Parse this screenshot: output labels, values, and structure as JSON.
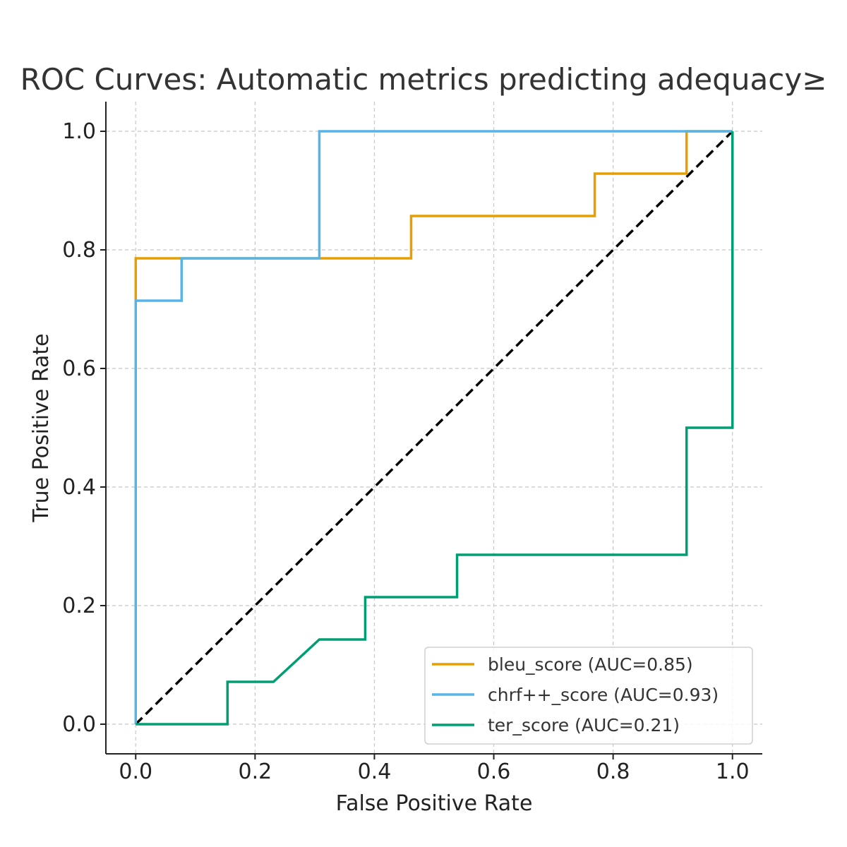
{
  "chart_data": {
    "type": "line",
    "title": "ROC Curves: Automatic metrics predicting adequacy≥",
    "xlabel": "False Positive Rate",
    "ylabel": "True Positive Rate",
    "xlim": [
      -0.05,
      1.05
    ],
    "ylim": [
      -0.05,
      1.05
    ],
    "xticks": [
      0.0,
      0.2,
      0.4,
      0.6,
      0.8,
      1.0
    ],
    "yticks": [
      0.0,
      0.2,
      0.4,
      0.6,
      0.8,
      1.0
    ],
    "xtick_labels": [
      "0.0",
      "0.2",
      "0.4",
      "0.6",
      "0.8",
      "1.0"
    ],
    "ytick_labels": [
      "0.0",
      "0.2",
      "0.4",
      "0.6",
      "0.8",
      "1.0"
    ],
    "grid": true,
    "legend_position": "lower-right",
    "series": [
      {
        "name": "bleu_score (AUC=0.85)",
        "color": "#E69F00",
        "x": [
          0.0,
          0.0,
          0.4615,
          0.4615,
          0.7692,
          0.7692,
          0.9231,
          0.9231,
          1.0
        ],
        "y": [
          0.7143,
          0.7857,
          0.7857,
          0.8571,
          0.8571,
          0.9286,
          0.9286,
          1.0,
          1.0
        ]
      },
      {
        "name": "chrf++_score (AUC=0.93)",
        "color": "#56B4E9",
        "x": [
          0.0,
          0.0,
          0.0769,
          0.0769,
          0.3077,
          0.3077,
          1.0
        ],
        "y": [
          0.0,
          0.7143,
          0.7143,
          0.7857,
          0.7857,
          1.0,
          1.0
        ]
      },
      {
        "name": "ter_score (AUC=0.21)",
        "color": "#009E73",
        "x": [
          0.0,
          0.1538,
          0.1538,
          0.2308,
          0.3077,
          0.3846,
          0.3846,
          0.5385,
          0.5385,
          0.9231,
          0.9231,
          1.0,
          1.0
        ],
        "y": [
          0.0,
          0.0,
          0.0714,
          0.0714,
          0.1429,
          0.1429,
          0.2143,
          0.2143,
          0.2857,
          0.2857,
          0.5,
          0.5,
          1.0
        ]
      }
    ],
    "reference_line": {
      "x": [
        0.0,
        1.0
      ],
      "y": [
        0.0,
        1.0
      ],
      "color": "#000000",
      "style": "dashed"
    }
  }
}
